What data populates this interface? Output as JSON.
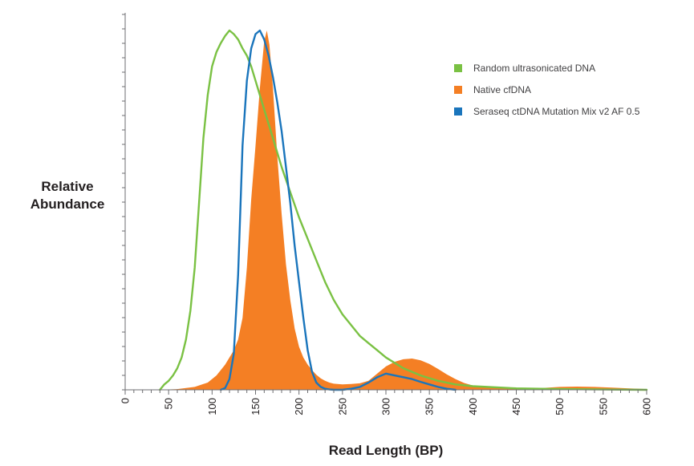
{
  "chart_data": {
    "type": "area",
    "xlabel": "Read Length (BP)",
    "ylabel": [
      "Relative",
      "Abundance"
    ],
    "xlim": [
      0,
      600
    ],
    "ylim": [
      0,
      1
    ],
    "x_ticks": [
      0,
      50,
      100,
      150,
      200,
      250,
      300,
      350,
      400,
      450,
      500,
      550,
      600
    ],
    "grid": false,
    "legend_position": "top-right",
    "series": [
      {
        "name": "Native cfDNA",
        "style": "filled-area",
        "color": "#f47f24",
        "x": [
          40,
          60,
          80,
          95,
          105,
          115,
          125,
          130,
          135,
          140,
          145,
          150,
          155,
          160,
          163,
          166,
          170,
          175,
          180,
          185,
          190,
          195,
          200,
          205,
          210,
          215,
          220,
          225,
          230,
          235,
          240,
          250,
          260,
          270,
          280,
          290,
          300,
          310,
          320,
          330,
          340,
          350,
          360,
          370,
          380,
          390,
          400,
          420,
          440,
          460,
          480,
          500,
          520,
          540,
          560,
          580,
          600
        ],
        "y": [
          0.0,
          0.002,
          0.008,
          0.02,
          0.04,
          0.07,
          0.11,
          0.14,
          0.2,
          0.34,
          0.53,
          0.68,
          0.84,
          0.97,
          1.0,
          0.96,
          0.84,
          0.65,
          0.49,
          0.35,
          0.25,
          0.17,
          0.12,
          0.09,
          0.07,
          0.055,
          0.042,
          0.032,
          0.025,
          0.02,
          0.017,
          0.015,
          0.016,
          0.018,
          0.025,
          0.045,
          0.065,
          0.078,
          0.085,
          0.087,
          0.082,
          0.072,
          0.058,
          0.043,
          0.03,
          0.019,
          0.012,
          0.006,
          0.004,
          0.003,
          0.005,
          0.008,
          0.009,
          0.008,
          0.006,
          0.004,
          0.002
        ]
      },
      {
        "name": "Random ultrasonicated DNA",
        "style": "line",
        "color": "#7ac143",
        "x": [
          40,
          45,
          50,
          55,
          60,
          65,
          70,
          75,
          80,
          85,
          90,
          95,
          100,
          105,
          110,
          115,
          120,
          125,
          130,
          135,
          140,
          145,
          150,
          160,
          170,
          180,
          190,
          200,
          210,
          220,
          230,
          240,
          250,
          260,
          270,
          280,
          290,
          300,
          320,
          340,
          360,
          380,
          400,
          450,
          500,
          550,
          600
        ],
        "y": [
          0.0,
          0.015,
          0.025,
          0.04,
          0.06,
          0.09,
          0.14,
          0.22,
          0.34,
          0.52,
          0.7,
          0.82,
          0.9,
          0.94,
          0.965,
          0.985,
          1.0,
          0.99,
          0.975,
          0.95,
          0.93,
          0.9,
          0.86,
          0.78,
          0.7,
          0.62,
          0.55,
          0.48,
          0.42,
          0.36,
          0.3,
          0.25,
          0.21,
          0.18,
          0.15,
          0.13,
          0.11,
          0.09,
          0.06,
          0.04,
          0.025,
          0.015,
          0.01,
          0.004,
          0.002,
          0.001,
          0.0
        ]
      },
      {
        "name": "Seraseq ctDNA Mutation Mix v2 AF 0.5",
        "style": "line",
        "color": "#1a75bc",
        "x": [
          110,
          115,
          120,
          125,
          130,
          135,
          140,
          145,
          150,
          155,
          160,
          165,
          170,
          175,
          180,
          185,
          190,
          195,
          200,
          205,
          210,
          215,
          220,
          225,
          230,
          235,
          240,
          250,
          260,
          270,
          280,
          290,
          300,
          310,
          320,
          330,
          340,
          350,
          360,
          370,
          380
        ],
        "y": [
          0.0,
          0.005,
          0.03,
          0.1,
          0.32,
          0.68,
          0.86,
          0.95,
          0.99,
          1.0,
          0.975,
          0.93,
          0.87,
          0.8,
          0.72,
          0.62,
          0.52,
          0.4,
          0.3,
          0.2,
          0.11,
          0.05,
          0.02,
          0.008,
          0.003,
          0.001,
          0.0,
          0.0,
          0.003,
          0.008,
          0.02,
          0.035,
          0.045,
          0.04,
          0.035,
          0.03,
          0.022,
          0.015,
          0.008,
          0.003,
          0.0
        ]
      }
    ]
  }
}
